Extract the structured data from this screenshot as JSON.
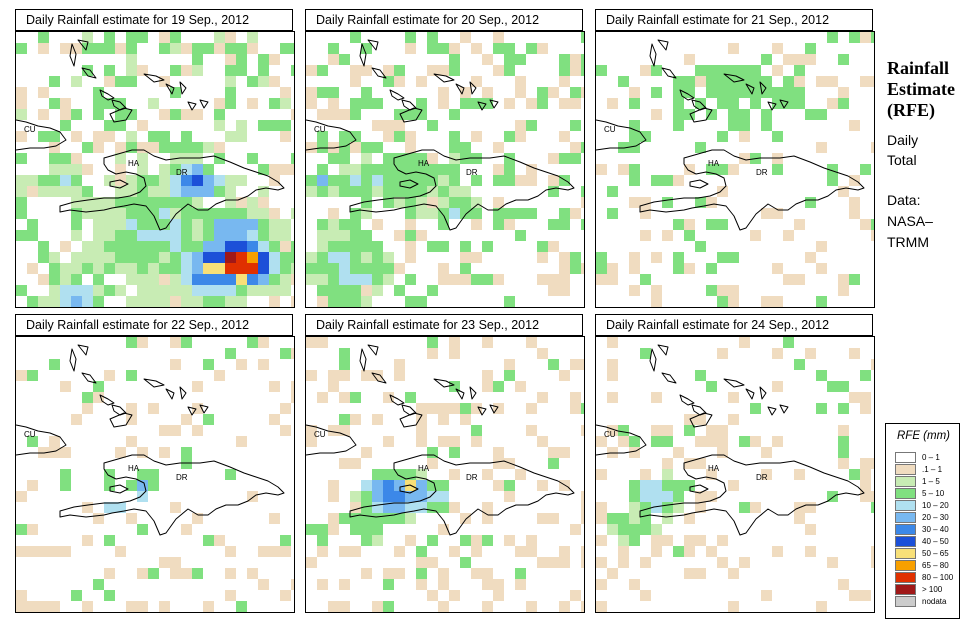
{
  "side": {
    "heading": [
      "Rainfall",
      "Estimate",
      "(RFE)"
    ],
    "period": [
      "Daily",
      "Total"
    ],
    "source": [
      "Data:",
      "NASA–",
      "TRMM"
    ]
  },
  "country_labels": [
    "CU",
    "HA",
    "DR"
  ],
  "panels": [
    {
      "title": "Daily Rainfall estimate for  19 Sep., 2012"
    },
    {
      "title": "Daily Rainfall estimate for  20 Sep., 2012"
    },
    {
      "title": "Daily Rainfall estimate for  21 Sep., 2012"
    },
    {
      "title": "Daily Rainfall estimate for  22 Sep., 2012"
    },
    {
      "title": "Daily Rainfall estimate for  23 Sep., 2012"
    },
    {
      "title": "Daily Rainfall estimate for  24 Sep., 2012"
    }
  ],
  "legend": {
    "title": "RFE (mm)",
    "classes": [
      {
        "label": "0 – 1",
        "color": "#ffffff"
      },
      {
        "label": ".1 – 1",
        "color": "#f0dcc0"
      },
      {
        "label": "1 – 5",
        "color": "#c8ecb4"
      },
      {
        "label": "5 – 10",
        "color": "#80e080"
      },
      {
        "label": "10 – 20",
        "color": "#b0e0f0"
      },
      {
        "label": "20 – 30",
        "color": "#78b8f0"
      },
      {
        "label": "30 – 40",
        "color": "#3c88e8"
      },
      {
        "label": "40 – 50",
        "color": "#1c50d8"
      },
      {
        "label": "50 – 65",
        "color": "#f8e078"
      },
      {
        "label": "65 – 80",
        "color": "#f8a000"
      },
      {
        "label": "80 – 100",
        "color": "#e03000"
      },
      {
        "label": "> 100",
        "color": "#a01818"
      },
      {
        "label": "nodata",
        "color": "#cccccc"
      }
    ]
  }
}
